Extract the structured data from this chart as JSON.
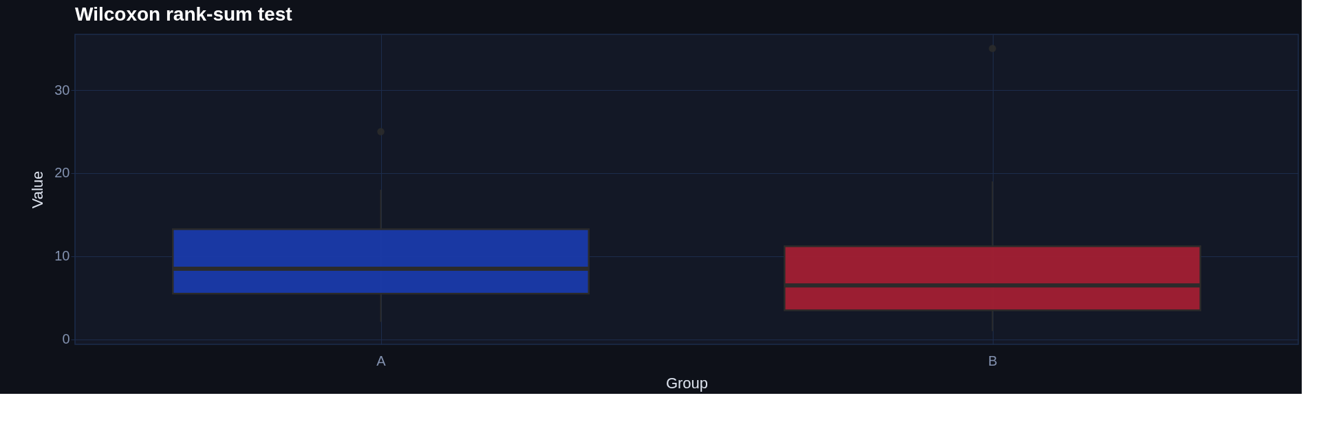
{
  "chart_data": {
    "type": "box",
    "title": "Wilcoxon rank-sum test",
    "xlabel": "Group",
    "ylabel": "Value",
    "categories": [
      "A",
      "B"
    ],
    "boxes": [
      {
        "low": 2.1,
        "q1": 5.5,
        "median": 8.5,
        "q3": 13.25,
        "high": 18,
        "outliers": [
          25
        ]
      },
      {
        "low": 1.0,
        "q1": 3.5,
        "median": 6.5,
        "q3": 11.2,
        "high": 19,
        "outliers": [
          35
        ]
      }
    ],
    "colors": [
      "#1a3aa8",
      "#a01f33"
    ],
    "ylim": [
      -0.6,
      36.7
    ],
    "yticks": [
      0,
      10,
      20,
      30
    ],
    "grid": true
  }
}
